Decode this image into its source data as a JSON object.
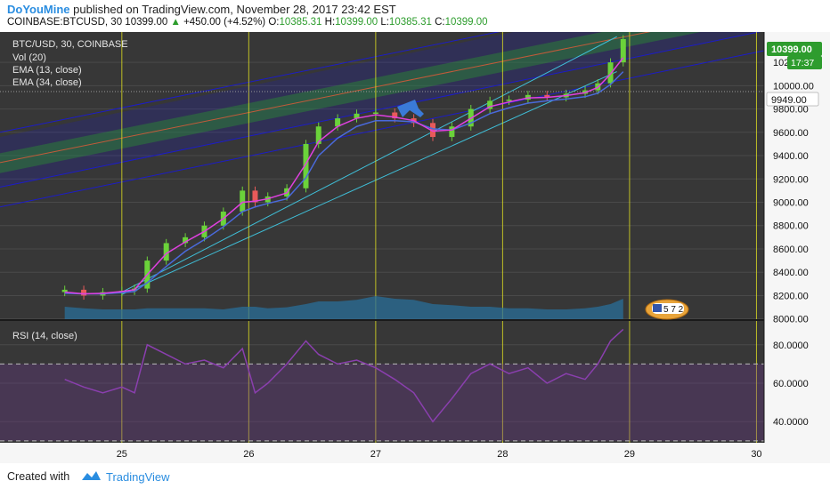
{
  "header": {
    "author": "DoYouMine",
    "published": "published on TradingView.com, November 28, 2017 23:42 EST",
    "symbol": "COINBASE:BTCUSD, 30",
    "last": "10399.00",
    "change": "+450.00 (+4.52%)",
    "o_label": "O:",
    "o_val": "10385.31",
    "h_label": "H:",
    "h_val": "10399.00",
    "l_label": "L:",
    "l_val": "10385.31",
    "c_label": "C:",
    "c_val": "10399.00"
  },
  "legend": {
    "title": "BTC/USD, 30, COINBASE",
    "vol": "Vol (20)",
    "ema13": "EMA (13, close)",
    "ema34": "EMA (34, close)",
    "rsi": "RSI (14, close)"
  },
  "price_tags": {
    "last": "10399.00",
    "countdown": "17:37",
    "line": "9949.00"
  },
  "badge": "5 7 2",
  "footer": {
    "created": "Created with",
    "brand": "TradingView"
  },
  "colors": {
    "background": "#373737",
    "candle_up": "#6bd23a",
    "candle_down": "#e85a5a",
    "ema13": "#e040e0",
    "ema34": "#4a6adc",
    "rsi": "#8a3fae",
    "session_line": "#e0e020",
    "channel_blue": "#1c1cc8",
    "channel_green": "#2aa02a",
    "arrow": "#3a7ad8"
  },
  "chart_data": {
    "type": "line",
    "title": "BTC/USD, 30, COINBASE",
    "x": [
      24.55,
      24.7,
      24.85,
      25.0,
      25.1,
      25.2,
      25.35,
      25.5,
      25.65,
      25.8,
      25.95,
      26.05,
      26.15,
      26.3,
      26.45,
      26.55,
      26.7,
      26.85,
      27.0,
      27.15,
      27.3,
      27.45,
      27.6,
      27.75,
      27.9,
      28.05,
      28.2,
      28.35,
      28.5,
      28.65,
      28.75,
      28.85,
      28.95
    ],
    "series": [
      {
        "name": "BTC/USD",
        "values": [
          8250,
          8200,
          8230,
          8240,
          8260,
          8500,
          8650,
          8700,
          8800,
          8920,
          9100,
          9000,
          9050,
          9120,
          9500,
          9650,
          9720,
          9760,
          9770,
          9720,
          9680,
          9560,
          9650,
          9800,
          9870,
          9880,
          9920,
          9900,
          9930,
          9960,
          10020,
          10200,
          10399
        ]
      },
      {
        "name": "EMA (13, close)",
        "values": [
          8230,
          8215,
          8220,
          8235,
          8250,
          8380,
          8560,
          8660,
          8750,
          8860,
          9000,
          9010,
          9030,
          9080,
          9330,
          9520,
          9650,
          9720,
          9750,
          9730,
          9700,
          9610,
          9620,
          9720,
          9820,
          9860,
          9895,
          9900,
          9915,
          9940,
          9985,
          10100,
          10240
        ]
      },
      {
        "name": "EMA (34, close)",
        "values": [
          8220,
          8215,
          8215,
          8225,
          8235,
          8310,
          8450,
          8580,
          8680,
          8790,
          8920,
          8960,
          8990,
          9030,
          9210,
          9400,
          9550,
          9650,
          9700,
          9700,
          9690,
          9630,
          9620,
          9680,
          9760,
          9810,
          9850,
          9870,
          9885,
          9905,
          9935,
          10010,
          10120
        ]
      }
    ],
    "volume": [
      0.25,
      0.22,
      0.2,
      0.2,
      0.2,
      0.22,
      0.22,
      0.22,
      0.22,
      0.2,
      0.25,
      0.25,
      0.22,
      0.24,
      0.3,
      0.35,
      0.35,
      0.38,
      0.45,
      0.4,
      0.38,
      0.3,
      0.28,
      0.25,
      0.25,
      0.22,
      0.22,
      0.2,
      0.2,
      0.22,
      0.25,
      0.3,
      0.4
    ],
    "rsi": {
      "name": "RSI (14, close)",
      "levels": [
        70,
        30
      ],
      "values": [
        62,
        58,
        55,
        58,
        55,
        80,
        75,
        70,
        72,
        68,
        78,
        55,
        60,
        70,
        82,
        75,
        70,
        72,
        68,
        62,
        55,
        40,
        52,
        65,
        70,
        65,
        68,
        60,
        65,
        62,
        70,
        82,
        88
      ]
    },
    "xticks": [
      "25",
      "26",
      "27",
      "28",
      "29",
      "30"
    ],
    "xtick_values": [
      25,
      26,
      27,
      28,
      29,
      30
    ],
    "yticks": [
      "8000.00",
      "8200.00",
      "8400.00",
      "8600.00",
      "8800.00",
      "9000.00",
      "9200.00",
      "9400.00",
      "9600.00",
      "9800.00",
      "10000.00",
      "10200.00"
    ],
    "ytick_values": [
      8000,
      8200,
      8400,
      8600,
      8800,
      9000,
      9200,
      9400,
      9600,
      9800,
      10000,
      10200
    ],
    "rsi_yticks": [
      "40.0000",
      "60.0000",
      "80.0000"
    ],
    "rsi_ytick_values": [
      40,
      60,
      80
    ],
    "xlim": [
      24.04,
      30.06
    ],
    "ylim": [
      7990,
      10460
    ],
    "rsi_ylim": [
      29,
      91
    ]
  }
}
